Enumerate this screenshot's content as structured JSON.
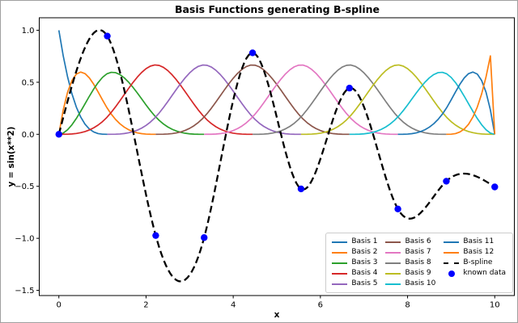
{
  "title": "Basis Functions generating B-spline",
  "chart_data": {
    "type": "line",
    "title": "Basis Functions generating B-spline",
    "xlabel": "x",
    "ylabel": "y = sin(x**2)",
    "xlim": [
      -0.45,
      10.45
    ],
    "ylim": [
      -1.55,
      1.12
    ],
    "x_ticks": [
      {
        "value": 0,
        "label": "0"
      },
      {
        "value": 2,
        "label": "2"
      },
      {
        "value": 4,
        "label": "4"
      },
      {
        "value": 6,
        "label": "6"
      },
      {
        "value": 8,
        "label": "8"
      },
      {
        "value": 10,
        "label": "10"
      }
    ],
    "y_ticks": [
      {
        "value": 1.0,
        "label": "1.0"
      },
      {
        "value": 0.5,
        "label": "0.5"
      },
      {
        "value": 0.0,
        "label": "0.0"
      },
      {
        "value": -0.5,
        "label": "−0.5"
      },
      {
        "value": -1.0,
        "label": "−1.0"
      },
      {
        "value": -1.5,
        "label": "−1.5"
      }
    ],
    "grid": false,
    "basis_degree": 3,
    "basis_knots": [
      0,
      0,
      0,
      0,
      1.1111,
      2.2222,
      3.3333,
      4.4444,
      5.5556,
      6.6667,
      7.7778,
      8.8889,
      10,
      10,
      10,
      10
    ],
    "basis_series": [
      {
        "label": "Basis 1",
        "color": "#1f77b4"
      },
      {
        "label": "Basis 2",
        "color": "#ff7f0e"
      },
      {
        "label": "Basis 3",
        "color": "#2ca02c"
      },
      {
        "label": "Basis 4",
        "color": "#d62728"
      },
      {
        "label": "Basis 5",
        "color": "#9467bd"
      },
      {
        "label": "Basis 6",
        "color": "#8c564b"
      },
      {
        "label": "Basis 7",
        "color": "#e377c2"
      },
      {
        "label": "Basis 8",
        "color": "#7f7f7f"
      },
      {
        "label": "Basis 9",
        "color": "#bcbd22"
      },
      {
        "label": "Basis 10",
        "color": "#17becf"
      },
      {
        "label": "Basis 11",
        "color": "#1f77b4"
      },
      {
        "label": "Basis 12",
        "color": "#ff7f0e"
      }
    ],
    "bspline": {
      "label": "B-spline",
      "color": "#000000",
      "linestyle": "dashed",
      "linewidth": 2
    },
    "known_data": {
      "label": "known data",
      "color": "#0000ff",
      "marker": "circle",
      "x": [
        0.0,
        1.111,
        2.222,
        3.333,
        4.444,
        5.556,
        6.667,
        7.778,
        8.889,
        10.0
      ],
      "y": [
        0.0,
        0.944,
        -0.973,
        -0.993,
        0.783,
        -0.525,
        0.444,
        -0.718,
        -0.451,
        -0.506
      ]
    },
    "legend": {
      "location": "lower right",
      "ncol": 3,
      "rows_per_column": 5,
      "entries": [
        {
          "label": "Basis 1",
          "color": "#1f77b4",
          "type": "line"
        },
        {
          "label": "Basis 2",
          "color": "#ff7f0e",
          "type": "line"
        },
        {
          "label": "Basis 3",
          "color": "#2ca02c",
          "type": "line"
        },
        {
          "label": "Basis 4",
          "color": "#d62728",
          "type": "line"
        },
        {
          "label": "Basis 5",
          "color": "#9467bd",
          "type": "line"
        },
        {
          "label": "Basis 6",
          "color": "#8c564b",
          "type": "line"
        },
        {
          "label": "Basis 7",
          "color": "#e377c2",
          "type": "line"
        },
        {
          "label": "Basis 8",
          "color": "#7f7f7f",
          "type": "line"
        },
        {
          "label": "Basis 9",
          "color": "#bcbd22",
          "type": "line"
        },
        {
          "label": "Basis 10",
          "color": "#17becf",
          "type": "line"
        },
        {
          "label": "Basis 11",
          "color": "#1f77b4",
          "type": "line"
        },
        {
          "label": "Basis 12",
          "color": "#ff7f0e",
          "type": "line"
        },
        {
          "label": "B-spline",
          "color": "#000000",
          "type": "dashed-line"
        },
        {
          "label": "known data",
          "color": "#0000ff",
          "type": "marker"
        }
      ]
    }
  }
}
